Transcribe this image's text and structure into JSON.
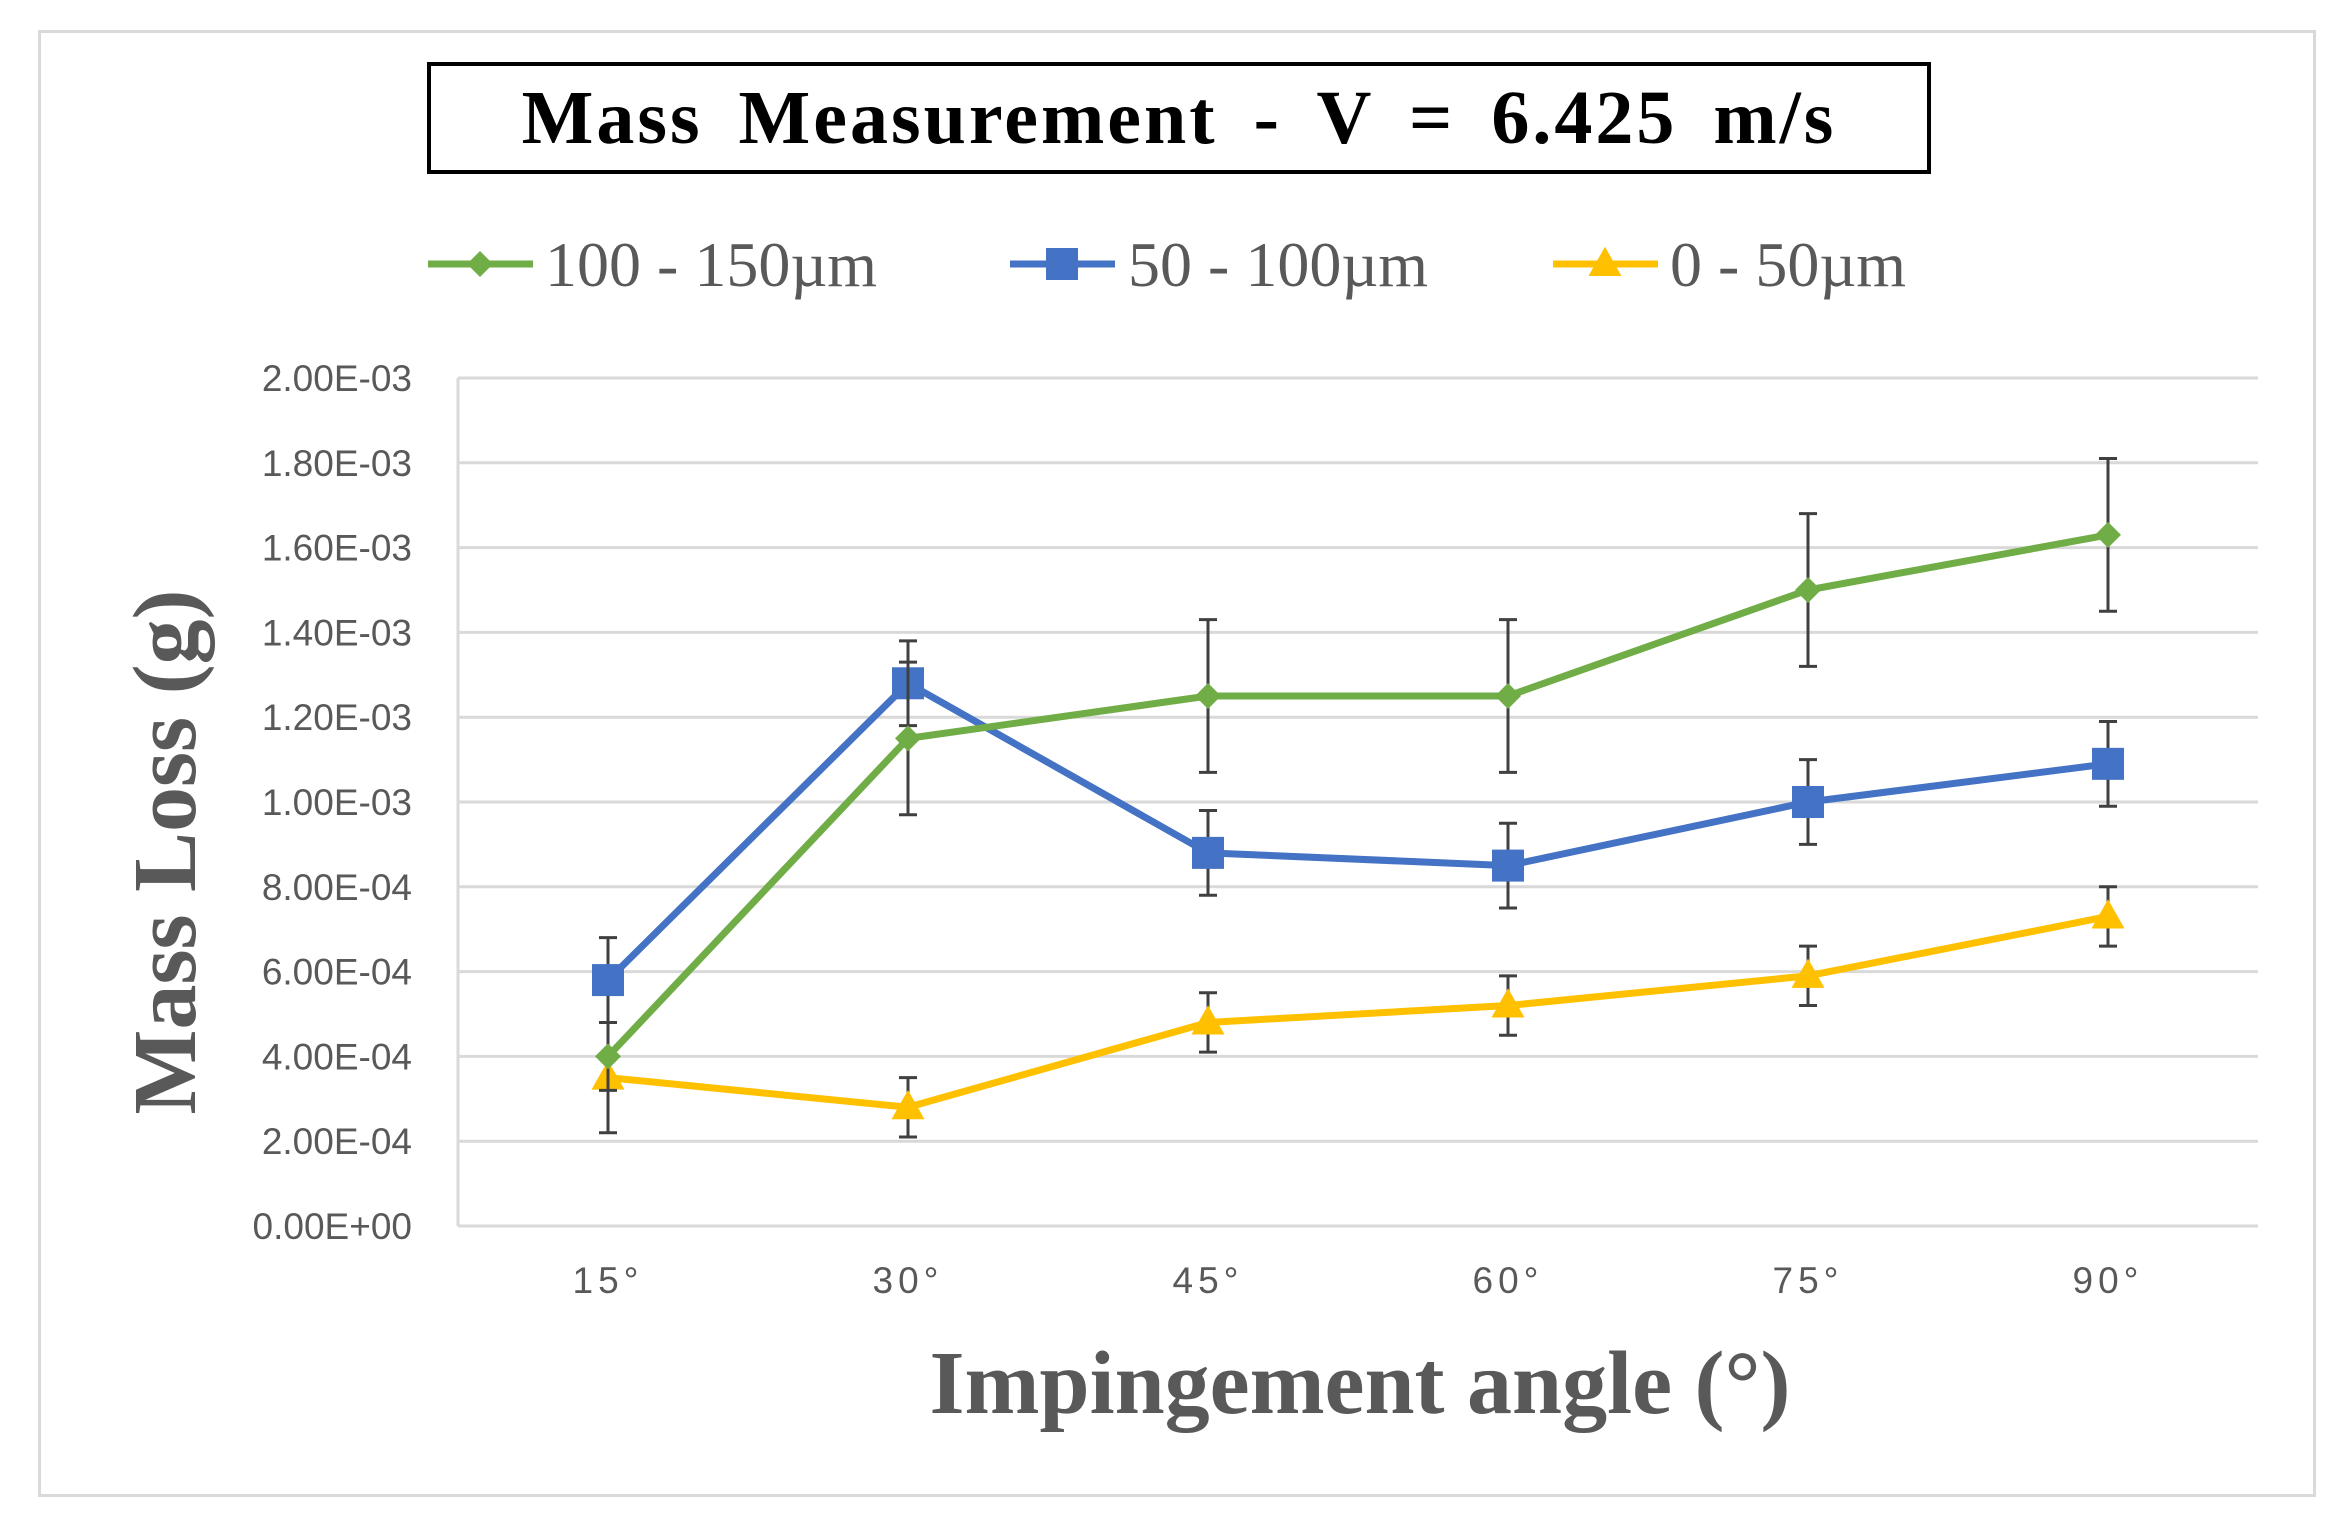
{
  "chart_data": {
    "type": "line",
    "title": "Mass Measurement  - V = 6.425 m/s",
    "xlabel": "Impingement angle (°)",
    "ylabel": "Mass Loss (g)",
    "categories": [
      "15°",
      "30°",
      "45°",
      "60°",
      "75°",
      "90°"
    ],
    "ylim": [
      0,
      0.002
    ],
    "yticks": [
      0,
      0.0002,
      0.0004,
      0.0006,
      0.0008,
      0.001,
      0.0012,
      0.0014,
      0.0016,
      0.0018,
      0.002
    ],
    "ytick_labels": [
      "0.00E+00",
      "2.00E-04",
      "4.00E-04",
      "6.00E-04",
      "8.00E-04",
      "1.00E-03",
      "1.20E-03",
      "1.40E-03",
      "1.60E-03",
      "1.80E-03",
      "2.00E-03"
    ],
    "grid": true,
    "legend_position": "top",
    "series": [
      {
        "name": "100 - 150µm",
        "color": "#70ad47",
        "marker": "diamond",
        "values": [
          0.0004,
          0.00115,
          0.00125,
          0.00125,
          0.0015,
          0.00163
        ],
        "errors": [
          8e-05,
          0.00018,
          0.00018,
          0.00018,
          0.00018,
          0.00018
        ]
      },
      {
        "name": "50 - 100µm",
        "color": "#4472c4",
        "marker": "square",
        "values": [
          0.00058,
          0.00128,
          0.00088,
          0.00085,
          0.001,
          0.00109
        ],
        "errors": [
          0.0001,
          0.0001,
          0.0001,
          0.0001,
          0.0001,
          0.0001
        ]
      },
      {
        "name": "0 - 50µm",
        "color": "#ffc000",
        "marker": "triangle",
        "values": [
          0.00035,
          0.00028,
          0.00048,
          0.00052,
          0.00059,
          0.00073
        ],
        "errors": [
          0.00013,
          7e-05,
          7e-05,
          7e-05,
          7e-05,
          7e-05
        ]
      }
    ]
  }
}
